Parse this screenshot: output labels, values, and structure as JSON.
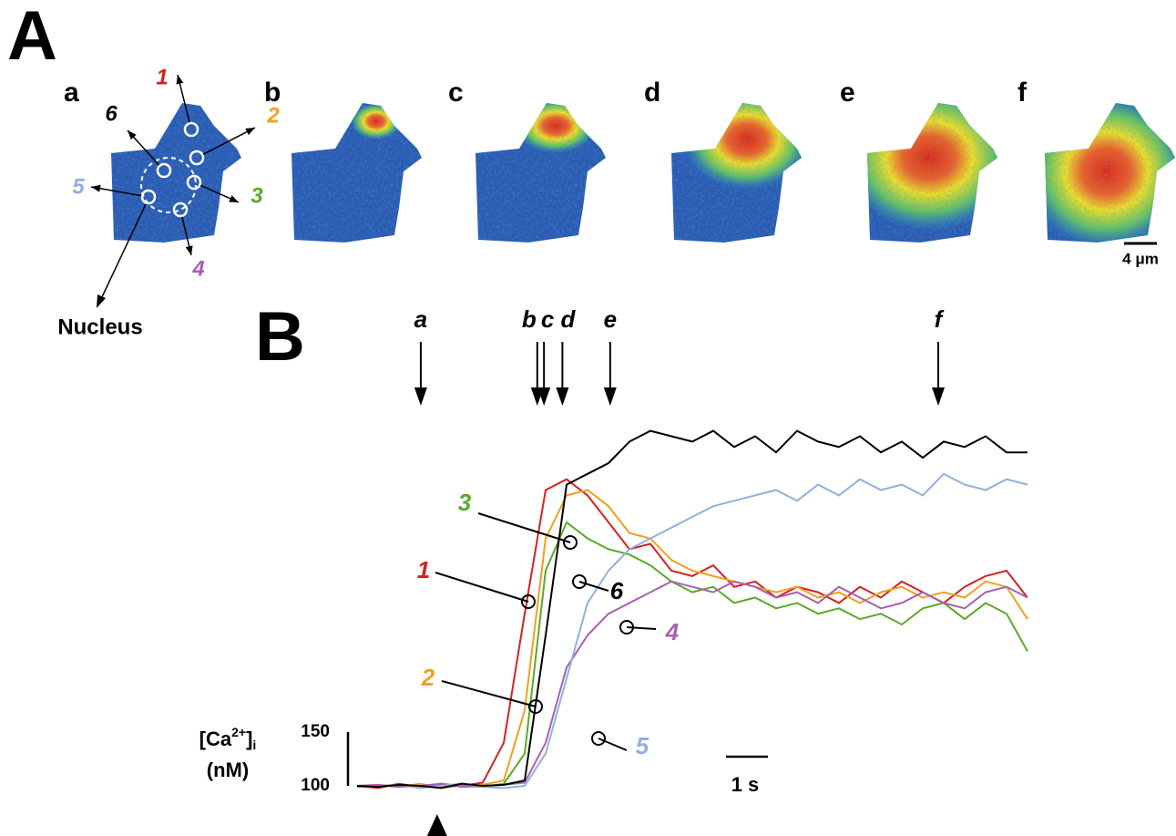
{
  "panel_a": {
    "label": "A",
    "images": [
      "a",
      "b",
      "c",
      "d",
      "e",
      "f"
    ],
    "rois": [
      {
        "name": "1",
        "color": "#d62020"
      },
      {
        "name": "2",
        "color": "#f0a020"
      },
      {
        "name": "3",
        "color": "#5aaa2a"
      },
      {
        "name": "4",
        "color": "#a860b0"
      },
      {
        "name": "5",
        "color": "#90b0e0"
      },
      {
        "name": "6",
        "color": "#000000"
      }
    ],
    "nucleus": "Nucleus",
    "scale_bar": "4 μm"
  },
  "panel_b": {
    "label": "B",
    "x": [
      0,
      0.5,
      1,
      1.5,
      2,
      2.5,
      3,
      3.5,
      4,
      4.5,
      5,
      5.5,
      6,
      6.5,
      7,
      7.5,
      8,
      8.5,
      9,
      9.5,
      10,
      10.5,
      11,
      11.5,
      12,
      12.5,
      13,
      13.5,
      14,
      14.5,
      15,
      15.5,
      16
    ],
    "series": [
      {
        "name": "1",
        "color": "#d62020",
        "values": [
          100,
          98,
          102,
          99,
          101,
          100,
          103,
          140,
          260,
          375,
          385,
          370,
          345,
          320,
          325,
          300,
          295,
          305,
          285,
          290,
          275,
          285,
          280,
          270,
          285,
          275,
          290,
          280,
          270,
          285,
          295,
          300,
          275
        ]
      },
      {
        "name": "2",
        "color": "#f0a020",
        "values": [
          100,
          101,
          99,
          102,
          98,
          100,
          101,
          105,
          170,
          330,
          370,
          375,
          360,
          335,
          330,
          310,
          300,
          295,
          290,
          285,
          280,
          285,
          275,
          280,
          270,
          280,
          285,
          275,
          280,
          275,
          290,
          285,
          255
        ]
      },
      {
        "name": "3",
        "color": "#5aaa2a",
        "values": [
          99,
          100,
          101,
          98,
          102,
          100,
          99,
          102,
          130,
          300,
          345,
          330,
          320,
          315,
          305,
          290,
          280,
          285,
          270,
          275,
          265,
          270,
          260,
          265,
          255,
          260,
          250,
          265,
          270,
          255,
          270,
          260,
          225
        ]
      },
      {
        "name": "4",
        "color": "#a860b0",
        "values": [
          100,
          101,
          99,
          100,
          102,
          99,
          100,
          101,
          103,
          140,
          210,
          240,
          260,
          270,
          280,
          290,
          285,
          280,
          290,
          285,
          275,
          280,
          270,
          285,
          275,
          265,
          270,
          280,
          270,
          265,
          280,
          285,
          275
        ]
      },
      {
        "name": "5",
        "color": "#90b0e0",
        "values": [
          100,
          99,
          101,
          98,
          100,
          102,
          99,
          98,
          100,
          130,
          200,
          270,
          300,
          320,
          330,
          340,
          350,
          360,
          365,
          370,
          375,
          365,
          380,
          370,
          385,
          375,
          380,
          370,
          390,
          380,
          375,
          385,
          380
        ]
      },
      {
        "name": "6",
        "color": "#000000",
        "values": [
          100,
          99,
          101,
          100,
          98,
          102,
          100,
          101,
          105,
          240,
          380,
          390,
          400,
          420,
          430,
          425,
          420,
          430,
          415,
          425,
          410,
          430,
          420,
          415,
          425,
          410,
          420,
          405,
          420,
          415,
          425,
          410,
          410
        ]
      }
    ],
    "yticks": [
      100,
      150
    ],
    "y_label": {
      "open": "[Ca",
      "charge": "2+",
      "close": "]",
      "sub": "i",
      "unit": "(nM)"
    },
    "time_bar": {
      "label": "1 s",
      "length": 1
    },
    "frames": [
      {
        "label": "a",
        "time": 1.52
      },
      {
        "label": "b",
        "time": 4.3
      },
      {
        "label": "c",
        "time": 4.46
      },
      {
        "label": "d",
        "time": 4.9
      },
      {
        "label": "e",
        "time": 6.04
      },
      {
        "label": "f",
        "time": 13.87
      }
    ],
    "stimulus_time": 1.91
  }
}
